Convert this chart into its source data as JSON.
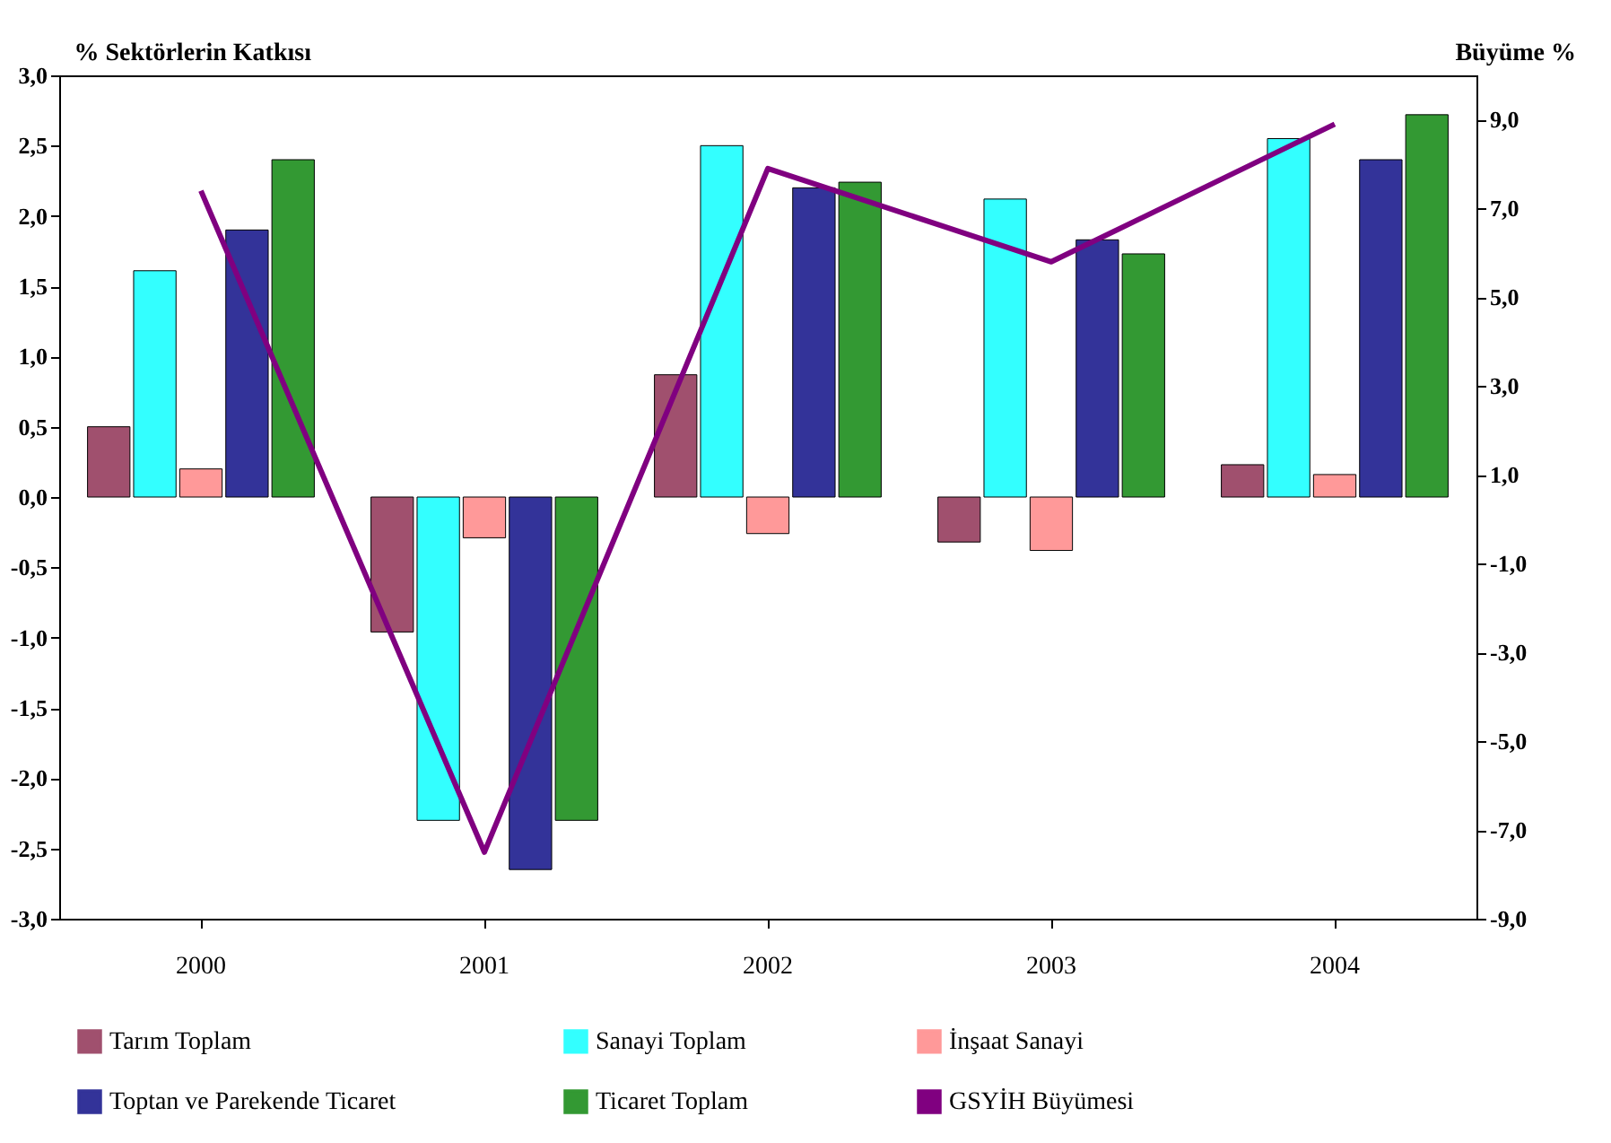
{
  "chart_data": {
    "type": "bar",
    "ylabel": "% Sektörlerin Katkısı",
    "y2label": "Büyüme %",
    "categories": [
      "2000",
      "2001",
      "2002",
      "2003",
      "2004"
    ],
    "series": [
      {
        "name": "Tarım Toplam",
        "color": "#a0506e",
        "values": [
          0.5,
          -0.96,
          0.87,
          -0.32,
          0.23
        ]
      },
      {
        "name": "Sanayi Toplam",
        "color": "#33ffff",
        "values": [
          1.61,
          -2.3,
          2.5,
          2.12,
          2.55
        ]
      },
      {
        "name": "İnşaat Sanayi",
        "color": "#ff9999",
        "values": [
          0.2,
          -0.29,
          -0.26,
          -0.38,
          0.16
        ]
      },
      {
        "name": "Toptan ve Parekende Ticaret",
        "color": "#333399",
        "values": [
          1.9,
          -2.65,
          2.2,
          1.83,
          2.4
        ]
      },
      {
        "name": "Ticaret Toplam",
        "color": "#339933",
        "values": [
          2.4,
          -2.3,
          2.24,
          1.73,
          2.72
        ]
      },
      {
        "name": "GSYİH Büyümesi",
        "type": "line",
        "axis": "y2",
        "color": "#800080",
        "values": [
          7.4,
          -7.5,
          7.9,
          5.8,
          8.9
        ]
      }
    ],
    "ylim": [
      -3,
      3
    ],
    "yticks": [
      {
        "value": -3,
        "label": "-3,0"
      },
      {
        "value": -2.5,
        "label": "-2,5"
      },
      {
        "value": -2,
        "label": "-2,0"
      },
      {
        "value": -1.5,
        "label": "-1,5"
      },
      {
        "value": -1,
        "label": "-1,0"
      },
      {
        "value": -0.5,
        "label": "-0,5"
      },
      {
        "value": 0,
        "label": "0,0"
      },
      {
        "value": 0.5,
        "label": "0,5"
      },
      {
        "value": 1,
        "label": "1,0"
      },
      {
        "value": 1.5,
        "label": "1,5"
      },
      {
        "value": 2,
        "label": "2,0"
      },
      {
        "value": 2.5,
        "label": "2,5"
      },
      {
        "value": 3,
        "label": "3,0"
      }
    ],
    "y2lim": [
      -9,
      10
    ],
    "y2ticks": [
      {
        "value": -9,
        "label": "-9,0"
      },
      {
        "value": -7,
        "label": "-7,0"
      },
      {
        "value": -5,
        "label": "-5,0"
      },
      {
        "value": -3,
        "label": "-3,0"
      },
      {
        "value": -1,
        "label": "-1,0"
      },
      {
        "value": 1,
        "label": "1,0"
      },
      {
        "value": 3,
        "label": "3,0"
      },
      {
        "value": 5,
        "label": "5,0"
      },
      {
        "value": 7,
        "label": "7,0"
      },
      {
        "value": 9,
        "label": "9,0"
      }
    ],
    "grid": false,
    "legend": "bottom"
  }
}
